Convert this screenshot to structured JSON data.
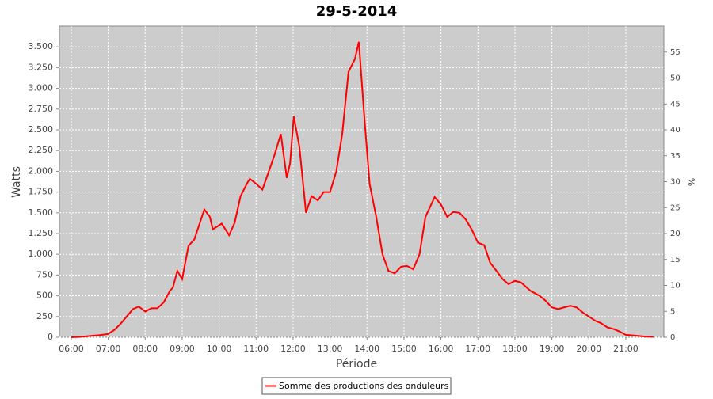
{
  "chart_data": {
    "type": "line",
    "title": "29-5-2014",
    "x_label": "Période",
    "y_label": "Watts",
    "y2_label": "%",
    "x": [
      6.0,
      6.25,
      6.5,
      6.75,
      7.0,
      7.17,
      7.33,
      7.5,
      7.67,
      7.83,
      8.0,
      8.17,
      8.33,
      8.5,
      8.67,
      8.75,
      8.87,
      9.0,
      9.17,
      9.33,
      9.6,
      9.75,
      9.83,
      10.07,
      10.27,
      10.42,
      10.58,
      10.75,
      10.83,
      11.0,
      11.17,
      11.33,
      11.5,
      11.67,
      11.83,
      11.92,
      12.02,
      12.17,
      12.35,
      12.5,
      12.67,
      12.83,
      13.0,
      13.17,
      13.33,
      13.5,
      13.67,
      13.78,
      13.92,
      14.07,
      14.25,
      14.42,
      14.58,
      14.75,
      14.92,
      15.08,
      15.25,
      15.42,
      15.58,
      15.83,
      16.0,
      16.17,
      16.33,
      16.5,
      16.67,
      16.83,
      17.0,
      17.17,
      17.33,
      17.5,
      17.67,
      17.83,
      18.0,
      18.17,
      18.42,
      18.67,
      18.83,
      19.0,
      19.17,
      19.33,
      19.5,
      19.67,
      19.83,
      20.0,
      20.17,
      20.33,
      20.5,
      20.67,
      20.83,
      21.0,
      21.25,
      21.5,
      21.75
    ],
    "series": [
      {
        "name": "Somme des productions des onduleurs",
        "color": "#ff0000",
        "values": [
          0,
          5,
          15,
          25,
          40,
          90,
          160,
          250,
          340,
          370,
          310,
          350,
          350,
          420,
          560,
          600,
          800,
          700,
          1100,
          1180,
          1540,
          1450,
          1300,
          1370,
          1230,
          1380,
          1700,
          1850,
          1910,
          1850,
          1780,
          1980,
          2200,
          2450,
          1920,
          2100,
          2660,
          2300,
          1500,
          1700,
          1650,
          1750,
          1750,
          2000,
          2450,
          3200,
          3350,
          3560,
          2700,
          1850,
          1450,
          1000,
          800,
          770,
          850,
          860,
          820,
          1000,
          1450,
          1690,
          1600,
          1450,
          1510,
          1500,
          1420,
          1300,
          1140,
          1110,
          900,
          800,
          700,
          640,
          680,
          660,
          560,
          500,
          440,
          360,
          340,
          360,
          380,
          360,
          300,
          250,
          200,
          170,
          120,
          100,
          70,
          30,
          20,
          10,
          5
        ]
      }
    ],
    "xlim": [
      5.68,
      22.03
    ],
    "xticks": [
      {
        "value": 6,
        "label": "06:00"
      },
      {
        "value": 7,
        "label": "07:00"
      },
      {
        "value": 8,
        "label": "08:00"
      },
      {
        "value": 9,
        "label": "09:00"
      },
      {
        "value": 10,
        "label": "10:00"
      },
      {
        "value": 11,
        "label": "11:00"
      },
      {
        "value": 12,
        "label": "12:00"
      },
      {
        "value": 13,
        "label": "13:00"
      },
      {
        "value": 14,
        "label": "14:00"
      },
      {
        "value": 15,
        "label": "15:00"
      },
      {
        "value": 16,
        "label": "16:00"
      },
      {
        "value": 17,
        "label": "17:00"
      },
      {
        "value": 18,
        "label": "18:00"
      },
      {
        "value": 19,
        "label": "19:00"
      },
      {
        "value": 20,
        "label": "20:00"
      },
      {
        "value": 21,
        "label": "21:00"
      }
    ],
    "ylim": [
      0,
      3750
    ],
    "yticks": [
      0,
      250,
      500,
      750,
      {
        "value": 1000,
        "label": "1.000"
      },
      {
        "value": 1250,
        "label": "1.250"
      },
      {
        "value": 1500,
        "label": "1.500"
      },
      {
        "value": 1750,
        "label": "1.750"
      },
      {
        "value": 2000,
        "label": "2.000"
      },
      {
        "value": 2250,
        "label": "2.250"
      },
      {
        "value": 2500,
        "label": "2.500"
      },
      {
        "value": 2750,
        "label": "2.750"
      },
      {
        "value": 3000,
        "label": "3.000"
      },
      {
        "value": 3250,
        "label": "3.250"
      },
      {
        "value": 3500,
        "label": "3.500"
      }
    ],
    "y2lim": [
      0,
      60
    ],
    "y2ticks": [
      0,
      5,
      10,
      15,
      20,
      25,
      30,
      35,
      40,
      45,
      50,
      55
    ],
    "grid": true,
    "legend": "bottom",
    "plot_background": "#cccccc"
  }
}
